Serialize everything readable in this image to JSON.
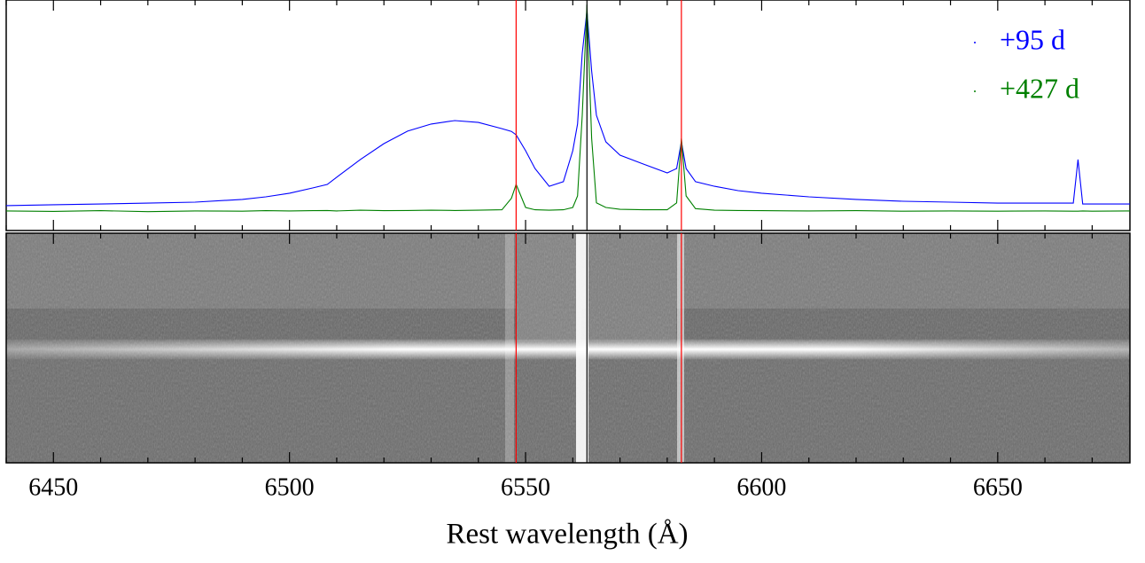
{
  "chart_data": {
    "type": "line",
    "xlabel": "Rest wavelength (Å)",
    "xlim": [
      6440,
      6678
    ],
    "ylim": [
      0,
      1
    ],
    "xticks": [
      6450,
      6500,
      6550,
      6600,
      6650
    ],
    "minor_xticks": [
      6440,
      6460,
      6470,
      6480,
      6490,
      6510,
      6520,
      6530,
      6540,
      6560,
      6570,
      6580,
      6590,
      6610,
      6620,
      6630,
      6640,
      6660,
      6670
    ],
    "legend": "upper right",
    "x": [
      6440,
      6450,
      6460,
      6470,
      6480,
      6490,
      6495,
      6500,
      6505,
      6508,
      6510,
      6515,
      6520,
      6525,
      6530,
      6535,
      6540,
      6545,
      6547,
      6548,
      6550,
      6552,
      6555,
      6558,
      6560,
      6561,
      6562,
      6563,
      6564,
      6565,
      6567,
      6570,
      6575,
      6580,
      6582,
      6583,
      6584,
      6586,
      6590,
      6595,
      6600,
      6610,
      6620,
      6630,
      6640,
      6650,
      6660,
      6666,
      6667,
      6668,
      6670,
      6678
    ],
    "series": [
      {
        "name": "+95 d",
        "color": "#0000ff",
        "values": [
          0.108,
          0.112,
          0.115,
          0.119,
          0.123,
          0.135,
          0.146,
          0.162,
          0.185,
          0.2,
          0.231,
          0.308,
          0.377,
          0.431,
          0.462,
          0.477,
          0.469,
          0.442,
          0.43,
          0.415,
          0.346,
          0.269,
          0.192,
          0.212,
          0.346,
          0.462,
          0.769,
          0.954,
          0.692,
          0.5,
          0.385,
          0.327,
          0.288,
          0.25,
          0.269,
          0.385,
          0.269,
          0.212,
          0.192,
          0.173,
          0.162,
          0.146,
          0.135,
          0.127,
          0.123,
          0.119,
          0.119,
          0.119,
          0.308,
          0.115,
          0.115,
          0.115
        ]
      },
      {
        "name": "+427 d",
        "color": "#008000",
        "values": [
          0.085,
          0.083,
          0.086,
          0.082,
          0.085,
          0.084,
          0.086,
          0.085,
          0.086,
          0.087,
          0.085,
          0.088,
          0.086,
          0.087,
          0.088,
          0.087,
          0.088,
          0.09,
          0.14,
          0.2,
          0.1,
          0.09,
          0.088,
          0.09,
          0.1,
          0.15,
          0.5,
          0.98,
          0.4,
          0.12,
          0.1,
          0.092,
          0.09,
          0.09,
          0.12,
          0.4,
          0.15,
          0.095,
          0.088,
          0.087,
          0.086,
          0.085,
          0.086,
          0.084,
          0.085,
          0.084,
          0.085,
          0.084,
          0.084,
          0.085,
          0.084,
          0.085
        ]
      }
    ],
    "lines": [
      {
        "x": 6548,
        "color": "#ff0000"
      },
      {
        "x": 6563,
        "color": "#000000"
      },
      {
        "x": 6583,
        "color": "#ff0000"
      }
    ]
  }
}
